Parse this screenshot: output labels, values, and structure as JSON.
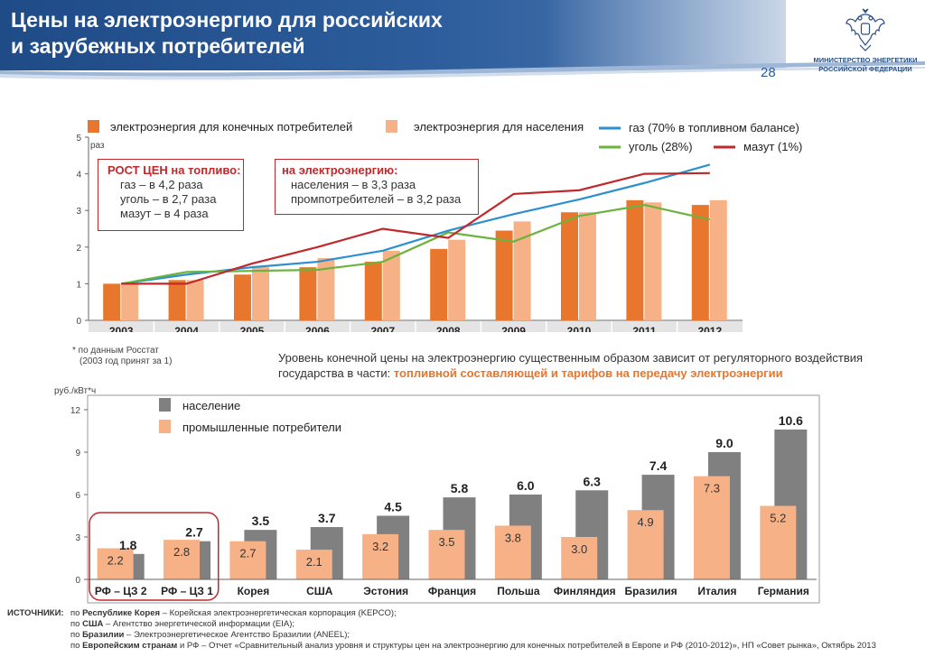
{
  "header": {
    "title_line1": "Цены на электроэнергию для российских",
    "title_line2": "и зарубежных потребителей",
    "page_number": "28",
    "ministry_line1": "МИНИСТЕРСТВО ЭНЕРГЕТИКИ",
    "ministry_line2": "РОССИЙСКОЙ ФЕДЕРАЦИИ",
    "brand_color": "#1f4b87"
  },
  "chart_data": [
    {
      "type": "bar",
      "ylabel": "раз",
      "ylim": [
        0,
        5
      ],
      "yticks": [
        "0",
        "1",
        "2",
        "3",
        "4",
        "5"
      ],
      "categories": [
        "2003",
        "2004",
        "2005",
        "2006",
        "2007",
        "2008",
        "2009",
        "2010",
        "2011",
        "2012"
      ],
      "series": [
        {
          "name": "электроэнергия для конечных потребителей",
          "kind": "bar",
          "color": "#e8762d",
          "values": [
            1.0,
            1.1,
            1.25,
            1.45,
            1.6,
            1.95,
            2.45,
            2.95,
            3.28,
            3.15
          ]
        },
        {
          "name": "электроэнергия для населения",
          "kind": "bar",
          "color": "#f7b187",
          "values": [
            1.0,
            1.1,
            1.45,
            1.7,
            1.9,
            2.2,
            2.7,
            2.95,
            3.22,
            3.28
          ]
        },
        {
          "name": "газ (70% в топливном балансе)",
          "kind": "line",
          "color": "#2b8fd0",
          "values": [
            1.0,
            1.25,
            1.45,
            1.6,
            1.9,
            2.45,
            2.9,
            3.3,
            3.75,
            4.25
          ]
        },
        {
          "name": "уголь (28%)",
          "kind": "line",
          "color": "#6cb33e",
          "values": [
            1.0,
            1.32,
            1.35,
            1.38,
            1.6,
            2.4,
            2.15,
            2.85,
            3.15,
            2.75
          ]
        },
        {
          "name": "мазут (1%)",
          "kind": "line",
          "color": "#c0282c",
          "values": [
            1.0,
            1.0,
            1.55,
            2.0,
            2.5,
            2.25,
            3.45,
            3.55,
            4.0,
            4.02
          ]
        }
      ],
      "annotations": {
        "fuel_box": {
          "heading": "РОСТ ЦЕН на топливо:",
          "lines": [
            "газ – в 4,2 раза",
            "уголь – в 2,7 раза",
            "мазут – в 4 раза"
          ]
        },
        "power_box": {
          "heading": "на электроэнергию:",
          "lines": [
            "населения – в 3,3 раза",
            "промпотребителей – в 3,2 раза"
          ]
        }
      }
    },
    {
      "type": "bar",
      "ylabel": "руб./кВт*ч",
      "ylim": [
        0,
        12
      ],
      "yticks": [
        "0",
        "3",
        "6",
        "9",
        "12"
      ],
      "categories": [
        "РФ – ЦЗ 2",
        "РФ – ЦЗ 1",
        "Корея",
        "США",
        "Эстония",
        "Франция",
        "Польша",
        "Финляндия",
        "Бразилия",
        "Италия",
        "Германия"
      ],
      "series": [
        {
          "name": "население",
          "color": "#808080",
          "values": [
            1.8,
            2.7,
            3.5,
            3.7,
            4.5,
            5.8,
            6.0,
            6.3,
            7.4,
            9.0,
            10.6
          ],
          "labels": [
            "1.8",
            "2.7",
            "3.5",
            "3.7",
            "4.5",
            "5.8",
            "6.0",
            "6.3",
            "7.4",
            "9.0",
            "10.6"
          ]
        },
        {
          "name": "промышленные потребители",
          "color": "#f7b187",
          "values": [
            2.2,
            2.8,
            2.7,
            2.1,
            3.2,
            3.5,
            3.8,
            3.0,
            4.9,
            7.3,
            5.2
          ],
          "labels": [
            "2.2",
            "2.8",
            "2.7",
            "2.1",
            "3.2",
            "3.5",
            "3.8",
            "3.0",
            "4.9",
            "7.3",
            "5.2"
          ]
        }
      ]
    }
  ],
  "note": {
    "line1": "* по данным Росстат",
    "line2": "(2003 год принят за 1)"
  },
  "description": {
    "line1": "Уровень конечной цены на электроэнергию существенным образом зависит от регуляторного воздействия",
    "line2_prefix": "государства в части: ",
    "line2_highlight": "топливной составляющей и тарифов на передачу электроэнергии"
  },
  "sources": {
    "label": "ИСТОЧНИКИ:",
    "lines": [
      {
        "pre": "по ",
        "bold": "Республике Корея",
        "post": " – Корейская электроэнергетическая корпорация (KEPCO);"
      },
      {
        "pre": "по ",
        "bold": "США",
        "post": " – Агентство энергетической информации (EIA);"
      },
      {
        "pre": "по ",
        "bold": "Бразилии",
        "post": " – Электроэнергетическое Агентство Бразилии (ANEEL);"
      },
      {
        "pre": "по ",
        "bold": "Европейским странам",
        "post": " и РФ – Отчет «Сравнительный анализ уровня и структуры цен на электроэнергию для конечных потребителей в Европе и РФ (2010-2012)», НП «Совет рынка», Октябрь 2013"
      }
    ]
  }
}
